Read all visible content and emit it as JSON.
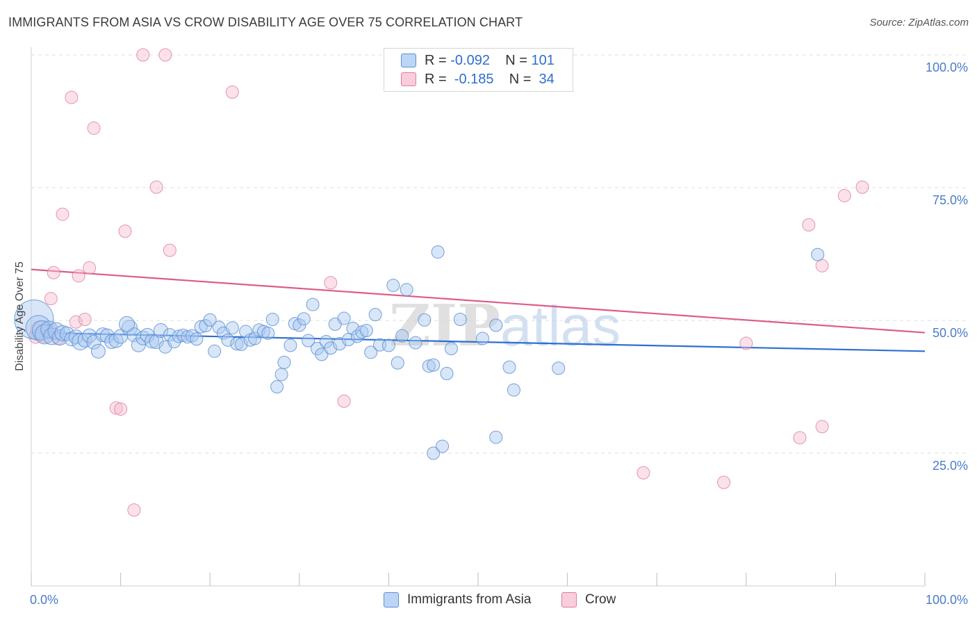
{
  "title": "IMMIGRANTS FROM ASIA VS CROW DISABILITY AGE OVER 75 CORRELATION CHART",
  "source": "Source: ZipAtlas.com",
  "legend": {
    "rows": [
      {
        "r_label": "R = ",
        "r_value": "-0.092",
        "n_label": "N = ",
        "n_value": "101"
      },
      {
        "r_label": "R = ",
        "r_value": " -0.185",
        "n_label": "N = ",
        "n_value": " 34"
      }
    ]
  },
  "colors": {
    "blue_fill": "#a9c8f0",
    "blue_stroke": "#5a8fd6",
    "blue_line": "#2d6fd2",
    "pink_fill": "#f6bdd0",
    "pink_stroke": "#e07a9c",
    "pink_line": "#e05a88",
    "grid": "#dcdcdc",
    "tick_text": "#4a7cc9"
  },
  "chart_data": {
    "type": "scatter",
    "title": "IMMIGRANTS FROM ASIA VS CROW DISABILITY AGE OVER 75 CORRELATION CHART",
    "xlabel": "",
    "ylabel": "Disability Age Over 75",
    "xlim": [
      0,
      100
    ],
    "ylim": [
      0,
      100
    ],
    "x_tick_labels": [
      "0.0%",
      "100.0%"
    ],
    "y_tick_labels": [
      "100.0%",
      "75.0%",
      "50.0%",
      "25.0%"
    ],
    "y_ticks": [
      100,
      75,
      50,
      25
    ],
    "watermark": "ZIPatlas",
    "series": [
      {
        "name": "Immigrants from Asia",
        "R": -0.092,
        "N": 101,
        "trend": {
          "x": [
            0,
            100
          ],
          "y": [
            47.7,
            44.2
          ]
        },
        "points": [
          {
            "x": 0.3,
            "y": 50.2,
            "s": 28
          },
          {
            "x": 0.8,
            "y": 48.6,
            "s": 18
          },
          {
            "x": 1.2,
            "y": 48.1,
            "s": 14
          },
          {
            "x": 1.5,
            "y": 47.4,
            "s": 14
          },
          {
            "x": 2.0,
            "y": 48.3,
            "s": 12
          },
          {
            "x": 2.3,
            "y": 47.0,
            "s": 12
          },
          {
            "x": 2.8,
            "y": 48.0,
            "s": 12
          },
          {
            "x": 3.2,
            "y": 46.8,
            "s": 11
          },
          {
            "x": 3.5,
            "y": 47.6,
            "s": 11
          },
          {
            "x": 4.0,
            "y": 47.5,
            "s": 10
          },
          {
            "x": 4.5,
            "y": 46.5,
            "s": 10
          },
          {
            "x": 5.0,
            "y": 46.9,
            "s": 10
          },
          {
            "x": 5.5,
            "y": 46.0,
            "s": 12
          },
          {
            "x": 6.0,
            "y": 46.3,
            "s": 10
          },
          {
            "x": 6.5,
            "y": 47.1,
            "s": 10
          },
          {
            "x": 7.0,
            "y": 45.9,
            "s": 10
          },
          {
            "x": 7.5,
            "y": 44.2,
            "s": 10
          },
          {
            "x": 8.0,
            "y": 47.3,
            "s": 10
          },
          {
            "x": 8.5,
            "y": 47.1,
            "s": 10
          },
          {
            "x": 9.0,
            "y": 46.0,
            "s": 10
          },
          {
            "x": 9.5,
            "y": 46.2,
            "s": 10
          },
          {
            "x": 10.0,
            "y": 47.0,
            "s": 10
          },
          {
            "x": 11.0,
            "y": 48.6,
            "s": 11
          },
          {
            "x": 11.5,
            "y": 47.3,
            "s": 10
          },
          {
            "x": 12.0,
            "y": 45.4,
            "s": 10
          },
          {
            "x": 12.5,
            "y": 46.7,
            "s": 10
          },
          {
            "x": 13.0,
            "y": 47.2,
            "s": 10
          },
          {
            "x": 13.5,
            "y": 46.1,
            "s": 10
          },
          {
            "x": 14.0,
            "y": 46.0,
            "s": 10
          },
          {
            "x": 14.5,
            "y": 48.1,
            "s": 10
          },
          {
            "x": 15.0,
            "y": 45.0,
            "s": 9
          },
          {
            "x": 15.5,
            "y": 47.3,
            "s": 9
          },
          {
            "x": 16.0,
            "y": 46.0,
            "s": 9
          },
          {
            "x": 16.5,
            "y": 47.0,
            "s": 9
          },
          {
            "x": 17.0,
            "y": 47.2,
            "s": 9
          },
          {
            "x": 17.5,
            "y": 46.9,
            "s": 9
          },
          {
            "x": 18.0,
            "y": 47.1,
            "s": 9
          },
          {
            "x": 18.5,
            "y": 46.5,
            "s": 9
          },
          {
            "x": 19.0,
            "y": 48.8,
            "s": 9
          },
          {
            "x": 19.5,
            "y": 49.0,
            "s": 9
          },
          {
            "x": 20.0,
            "y": 50.1,
            "s": 9
          },
          {
            "x": 20.5,
            "y": 44.2,
            "s": 9
          },
          {
            "x": 21.0,
            "y": 48.7,
            "s": 9
          },
          {
            "x": 21.5,
            "y": 47.6,
            "s": 9
          },
          {
            "x": 22.0,
            "y": 46.3,
            "s": 9
          },
          {
            "x": 22.5,
            "y": 48.6,
            "s": 9
          },
          {
            "x": 23.0,
            "y": 45.6,
            "s": 9
          },
          {
            "x": 23.5,
            "y": 45.5,
            "s": 9
          },
          {
            "x": 24.0,
            "y": 47.9,
            "s": 9
          },
          {
            "x": 24.5,
            "y": 46.3,
            "s": 9
          },
          {
            "x": 25.0,
            "y": 46.6,
            "s": 9
          },
          {
            "x": 25.5,
            "y": 48.2,
            "s": 9
          },
          {
            "x": 26.0,
            "y": 47.9,
            "s": 9
          },
          {
            "x": 26.5,
            "y": 47.6,
            "s": 9
          },
          {
            "x": 27.0,
            "y": 50.2,
            "s": 9
          },
          {
            "x": 27.5,
            "y": 37.5,
            "s": 9
          },
          {
            "x": 28.0,
            "y": 39.8,
            "s": 9
          },
          {
            "x": 28.3,
            "y": 42.1,
            "s": 9
          },
          {
            "x": 29.0,
            "y": 45.3,
            "s": 9
          },
          {
            "x": 29.5,
            "y": 49.4,
            "s": 9
          },
          {
            "x": 30.0,
            "y": 49.1,
            "s": 9
          },
          {
            "x": 30.5,
            "y": 50.3,
            "s": 9
          },
          {
            "x": 31.0,
            "y": 46.2,
            "s": 9
          },
          {
            "x": 31.5,
            "y": 53.0,
            "s": 9
          },
          {
            "x": 32.0,
            "y": 44.7,
            "s": 9
          },
          {
            "x": 32.5,
            "y": 43.6,
            "s": 9
          },
          {
            "x": 33.0,
            "y": 46.0,
            "s": 9
          },
          {
            "x": 33.5,
            "y": 44.8,
            "s": 9
          },
          {
            "x": 34.0,
            "y": 49.3,
            "s": 9
          },
          {
            "x": 34.5,
            "y": 45.6,
            "s": 9
          },
          {
            "x": 35.0,
            "y": 50.4,
            "s": 9
          },
          {
            "x": 35.5,
            "y": 46.4,
            "s": 9
          },
          {
            "x": 36.0,
            "y": 48.5,
            "s": 9
          },
          {
            "x": 36.5,
            "y": 47.0,
            "s": 9
          },
          {
            "x": 37.0,
            "y": 47.8,
            "s": 9
          },
          {
            "x": 37.5,
            "y": 48.1,
            "s": 9
          },
          {
            "x": 38.0,
            "y": 44.0,
            "s": 9
          },
          {
            "x": 38.5,
            "y": 51.1,
            "s": 9
          },
          {
            "x": 39.0,
            "y": 45.4,
            "s": 9
          },
          {
            "x": 40.0,
            "y": 45.3,
            "s": 9
          },
          {
            "x": 40.5,
            "y": 56.6,
            "s": 9
          },
          {
            "x": 41.0,
            "y": 42.0,
            "s": 9
          },
          {
            "x": 41.5,
            "y": 47.1,
            "s": 9
          },
          {
            "x": 42.0,
            "y": 55.8,
            "s": 9
          },
          {
            "x": 43.0,
            "y": 45.8,
            "s": 9
          },
          {
            "x": 44.0,
            "y": 50.1,
            "s": 9
          },
          {
            "x": 44.5,
            "y": 41.4,
            "s": 9
          },
          {
            "x": 45.0,
            "y": 41.6,
            "s": 9
          },
          {
            "x": 45.0,
            "y": 25.0,
            "s": 9
          },
          {
            "x": 45.5,
            "y": 62.9,
            "s": 9
          },
          {
            "x": 46.0,
            "y": 26.3,
            "s": 9
          },
          {
            "x": 46.5,
            "y": 40.0,
            "s": 9
          },
          {
            "x": 47.0,
            "y": 44.7,
            "s": 9
          },
          {
            "x": 48.0,
            "y": 50.2,
            "s": 9
          },
          {
            "x": 50.5,
            "y": 46.6,
            "s": 9
          },
          {
            "x": 52.0,
            "y": 49.1,
            "s": 9
          },
          {
            "x": 52.0,
            "y": 28.0,
            "s": 9
          },
          {
            "x": 53.5,
            "y": 41.2,
            "s": 9
          },
          {
            "x": 54.0,
            "y": 36.9,
            "s": 9
          },
          {
            "x": 59.0,
            "y": 41.0,
            "s": 9
          },
          {
            "x": 88.0,
            "y": 62.4,
            "s": 9
          },
          {
            "x": 10.7,
            "y": 49.3,
            "s": 11
          }
        ]
      },
      {
        "name": "Crow",
        "R": -0.185,
        "N": 34,
        "trend": {
          "x": [
            0,
            100
          ],
          "y": [
            59.6,
            47.7
          ]
        },
        "points": [
          {
            "x": 0.5,
            "y": 47.0,
            "s": 10
          },
          {
            "x": 1.0,
            "y": 48.1,
            "s": 14
          },
          {
            "x": 1.5,
            "y": 47.4,
            "s": 12
          },
          {
            "x": 2.0,
            "y": 47.9,
            "s": 11
          },
          {
            "x": 2.2,
            "y": 54.1,
            "s": 9
          },
          {
            "x": 2.5,
            "y": 59.0,
            "s": 9
          },
          {
            "x": 3.0,
            "y": 46.6,
            "s": 9
          },
          {
            "x": 3.5,
            "y": 70.0,
            "s": 9
          },
          {
            "x": 4.5,
            "y": 92.0,
            "s": 9
          },
          {
            "x": 5.0,
            "y": 49.7,
            "s": 9
          },
          {
            "x": 5.3,
            "y": 58.4,
            "s": 9
          },
          {
            "x": 6.0,
            "y": 50.2,
            "s": 9
          },
          {
            "x": 6.5,
            "y": 59.9,
            "s": 9
          },
          {
            "x": 7.0,
            "y": 86.2,
            "s": 9
          },
          {
            "x": 9.5,
            "y": 33.5,
            "s": 9
          },
          {
            "x": 10.0,
            "y": 33.3,
            "s": 9
          },
          {
            "x": 10.5,
            "y": 66.8,
            "s": 9
          },
          {
            "x": 11.5,
            "y": 14.3,
            "s": 9
          },
          {
            "x": 12.5,
            "y": 100.0,
            "s": 9
          },
          {
            "x": 14.0,
            "y": 75.1,
            "s": 9
          },
          {
            "x": 15.0,
            "y": 100.0,
            "s": 9
          },
          {
            "x": 15.5,
            "y": 63.2,
            "s": 9
          },
          {
            "x": 22.5,
            "y": 93.0,
            "s": 9
          },
          {
            "x": 33.5,
            "y": 57.1,
            "s": 9
          },
          {
            "x": 35.0,
            "y": 34.8,
            "s": 9
          },
          {
            "x": 68.5,
            "y": 21.3,
            "s": 9
          },
          {
            "x": 77.5,
            "y": 19.5,
            "s": 9
          },
          {
            "x": 80.0,
            "y": 45.7,
            "s": 9
          },
          {
            "x": 86.0,
            "y": 27.9,
            "s": 9
          },
          {
            "x": 87.0,
            "y": 68.0,
            "s": 9
          },
          {
            "x": 88.5,
            "y": 60.3,
            "s": 9
          },
          {
            "x": 88.5,
            "y": 30.0,
            "s": 9
          },
          {
            "x": 91.0,
            "y": 73.5,
            "s": 9
          },
          {
            "x": 93.0,
            "y": 75.1,
            "s": 9
          }
        ]
      }
    ]
  }
}
